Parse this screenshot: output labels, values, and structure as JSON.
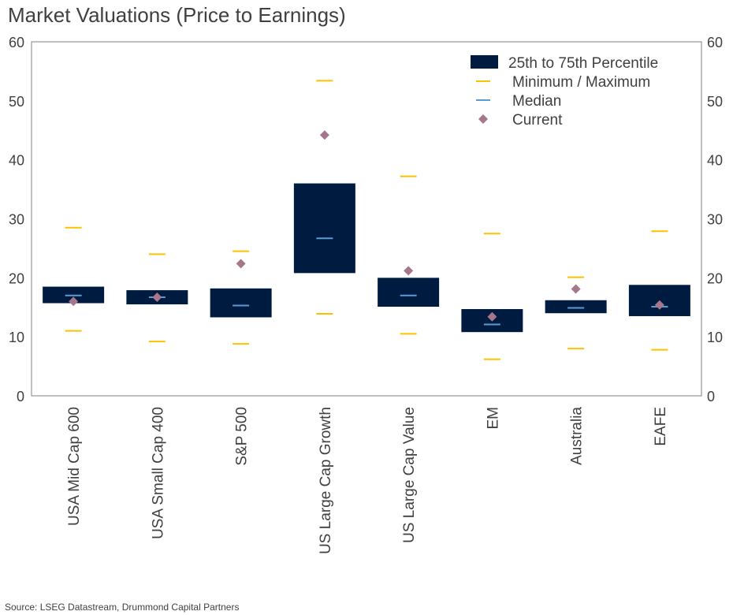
{
  "title": "Market Valuations (Price to Earnings)",
  "source": "Source: LSEG Datastream, Drummond Capital Partners",
  "colors": {
    "box": "#001b40",
    "minmax": "#ffc000",
    "median": "#5b9bd5",
    "current": "#a6768c",
    "axis": "#808080",
    "text": "#404040"
  },
  "chart_data": {
    "type": "box",
    "title": "Market Valuations (Price to Earnings)",
    "xlabel": "",
    "ylabel": "",
    "ylim": [
      0,
      60
    ],
    "yticks": [
      0,
      10,
      20,
      30,
      40,
      50,
      60
    ],
    "y2ticks": [
      0,
      10,
      20,
      30,
      40,
      50,
      60
    ],
    "grid": false,
    "legend_position": "top-right",
    "legend": [
      "25th to 75th Percentile",
      "Minimum / Maximum",
      "Median",
      "Current"
    ],
    "categories": [
      "USA Mid Cap 600",
      "USA Small Cap 400",
      "S&P 500",
      "US Large Cap Growth",
      "US Large Cap Value",
      "EM",
      "Australia",
      "EAFE"
    ],
    "series": [
      {
        "name": "25th Percentile",
        "values": [
          15.7,
          15.5,
          13.3,
          20.8,
          15.1,
          10.8,
          14.0,
          13.5
        ]
      },
      {
        "name": "75th Percentile",
        "values": [
          18.5,
          17.9,
          18.2,
          36.0,
          20.0,
          14.7,
          16.2,
          18.8
        ]
      },
      {
        "name": "Minimum",
        "values": [
          11.0,
          9.2,
          8.8,
          13.9,
          10.5,
          6.2,
          8.0,
          7.8
        ]
      },
      {
        "name": "Maximum",
        "values": [
          28.5,
          24.0,
          24.5,
          53.4,
          37.2,
          27.5,
          20.1,
          27.9
        ]
      },
      {
        "name": "Median",
        "values": [
          17.0,
          16.7,
          15.3,
          26.7,
          17.0,
          12.1,
          14.9,
          15.1
        ]
      },
      {
        "name": "Current",
        "values": [
          16.0,
          16.7,
          22.4,
          44.2,
          21.2,
          13.4,
          18.1,
          15.4
        ]
      }
    ]
  }
}
